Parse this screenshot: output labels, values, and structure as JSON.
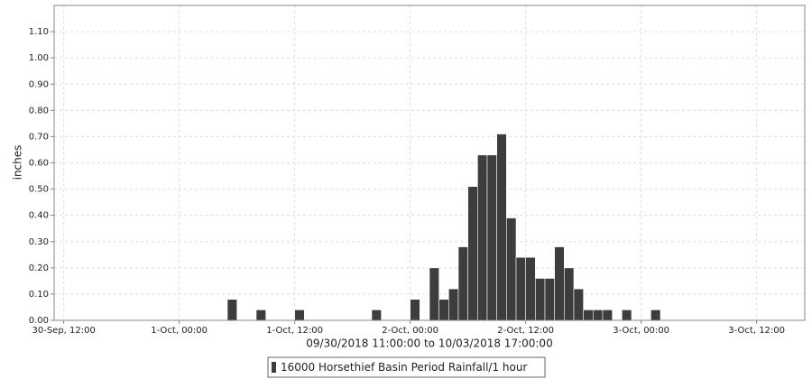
{
  "chart_data": {
    "type": "bar",
    "y_label": "inches",
    "x_label": "09/30/2018 11:00:00 to 10/03/2018 17:00:00",
    "x": [
      "2018-10-01 06:00",
      "2018-10-01 09:00",
      "2018-10-01 13:00",
      "2018-10-01 21:00",
      "2018-10-02 01:00",
      "2018-10-02 03:00",
      "2018-10-02 04:00",
      "2018-10-02 05:00",
      "2018-10-02 06:00",
      "2018-10-02 07:00",
      "2018-10-02 08:00",
      "2018-10-02 09:00",
      "2018-10-02 10:00",
      "2018-10-02 11:00",
      "2018-10-02 12:00",
      "2018-10-02 13:00",
      "2018-10-02 14:00",
      "2018-10-02 15:00",
      "2018-10-02 16:00",
      "2018-10-02 17:00",
      "2018-10-02 18:00",
      "2018-10-02 19:00",
      "2018-10-02 20:00",
      "2018-10-02 21:00",
      "2018-10-02 23:00",
      "2018-10-03 02:00"
    ],
    "series": [
      {
        "name": "16000 Horsethief Basin Period Rainfall/1 hour",
        "color": "#3d3d3d",
        "values": [
          0.08,
          0.04,
          0.04,
          0.04,
          0.08,
          0.2,
          0.08,
          0.12,
          0.28,
          0.51,
          0.63,
          0.63,
          0.71,
          0.39,
          0.24,
          0.24,
          0.16,
          0.16,
          0.28,
          0.2,
          0.12,
          0.04,
          0.04,
          0.04,
          0.04,
          0.04
        ]
      }
    ],
    "xlim": [
      "2018-09-30 11:00",
      "2018-10-03 17:00"
    ],
    "xticks": [
      {
        "value": "2018-09-30 12:00",
        "label": "30-Sep, 12:00"
      },
      {
        "value": "2018-10-01 00:00",
        "label": "1-Oct, 00:00"
      },
      {
        "value": "2018-10-01 12:00",
        "label": "1-Oct, 12:00"
      },
      {
        "value": "2018-10-02 00:00",
        "label": "2-Oct, 00:00"
      },
      {
        "value": "2018-10-02 12:00",
        "label": "2-Oct, 12:00"
      },
      {
        "value": "2018-10-03 00:00",
        "label": "3-Oct, 00:00"
      },
      {
        "value": "2018-10-03 12:00",
        "label": "3-Oct, 12:00"
      }
    ],
    "ylim": [
      0,
      1.2
    ],
    "yticks": [
      {
        "value": 0,
        "label": "0.00"
      },
      {
        "value": 0.1,
        "label": "0.10"
      },
      {
        "value": 0.2,
        "label": "0.20"
      },
      {
        "value": 0.3,
        "label": "0.30"
      },
      {
        "value": 0.4,
        "label": "0.40"
      },
      {
        "value": 0.5,
        "label": "0.50"
      },
      {
        "value": 0.6,
        "label": "0.60"
      },
      {
        "value": 0.7,
        "label": "0.70"
      },
      {
        "value": 0.8,
        "label": "0.80"
      },
      {
        "value": 0.9,
        "label": "0.90"
      },
      {
        "value": 1.0,
        "label": "1.00"
      },
      {
        "value": 1.1,
        "label": "1.10"
      }
    ],
    "grid": true
  }
}
